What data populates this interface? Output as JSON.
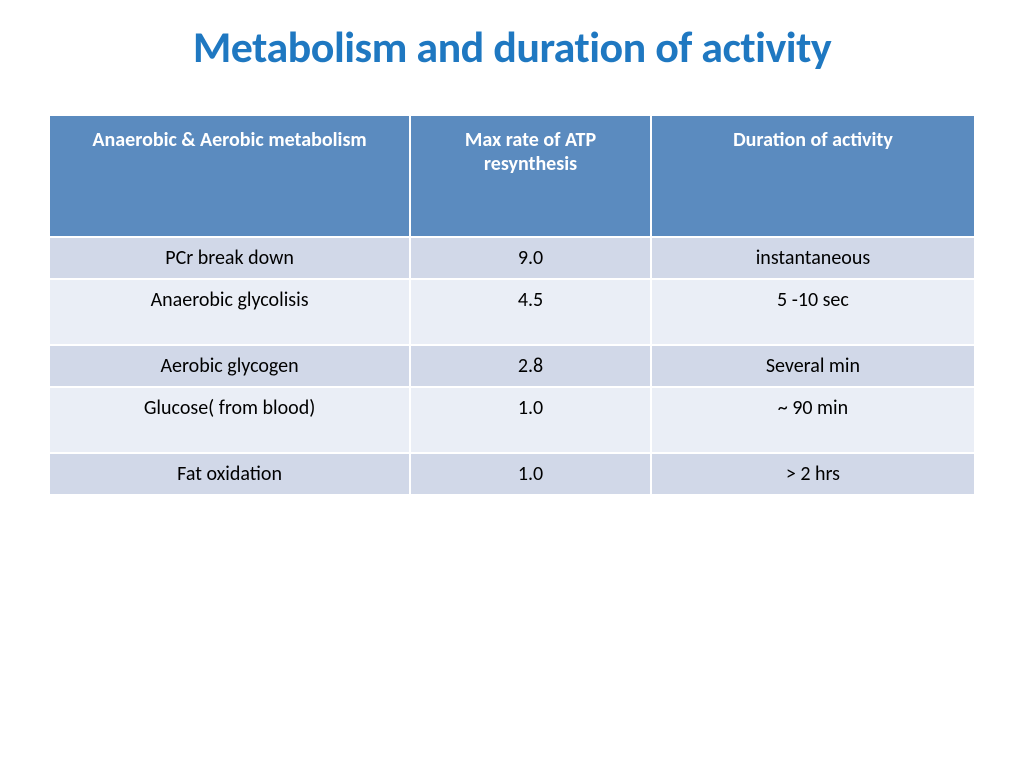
{
  "title": {
    "text": "Metabolism and duration of activity",
    "color": "#1f78c1",
    "fontsize": 44
  },
  "table": {
    "type": "table",
    "header_bg": "#5b8bbf",
    "header_font_color": "#ffffff",
    "header_fontsize": 20,
    "row_alt_colors": [
      "#d1d8e8",
      "#eaeef6"
    ],
    "cell_fontsize": 20,
    "cell_text_color": "#000000",
    "border_color": "#ffffff",
    "columns": [
      {
        "label": "Anaerobic  & Aerobic metabolism",
        "width_pct": 39
      },
      {
        "label": "Max rate of ATP resynthesis",
        "width_pct": 26
      },
      {
        "label": "Duration of activity",
        "width_pct": 35
      }
    ],
    "rows": [
      {
        "cells": [
          "PCr break down",
          "9.0",
          "instantaneous"
        ],
        "tall": false
      },
      {
        "cells": [
          "Anaerobic glycolisis",
          "4.5",
          "5 -10 sec"
        ],
        "tall": true
      },
      {
        "cells": [
          "Aerobic glycogen",
          "2.8",
          "Several min"
        ],
        "tall": false
      },
      {
        "cells": [
          "Glucose( from blood)",
          "1.0",
          "~ 90 min"
        ],
        "tall": true
      },
      {
        "cells": [
          "Fat oxidation",
          "1.0",
          "> 2 hrs"
        ],
        "tall": false
      }
    ]
  }
}
